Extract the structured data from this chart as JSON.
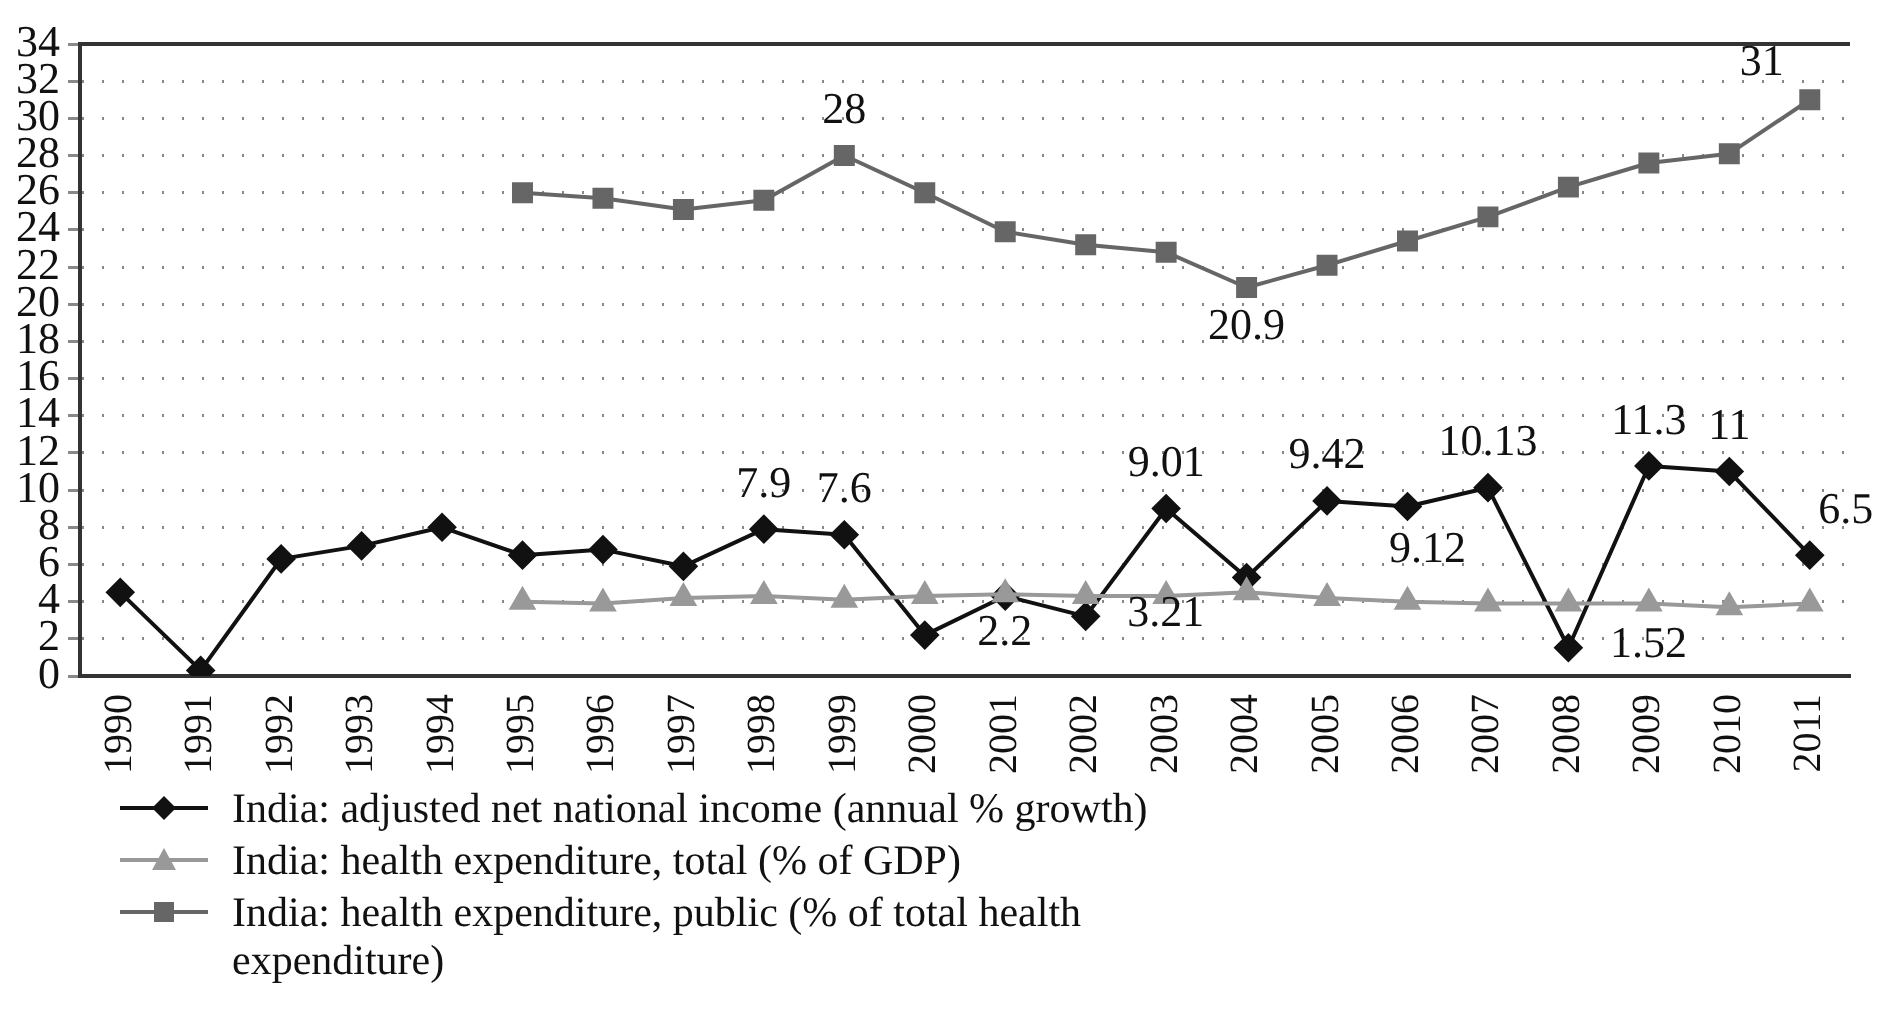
{
  "chart_data": {
    "type": "line",
    "categories": [
      "1990",
      "1991",
      "1992",
      "1993",
      "1994",
      "1995",
      "1996",
      "1997",
      "1998",
      "1999",
      "2000",
      "2001",
      "2002",
      "2003",
      "2004",
      "2005",
      "2006",
      "2007",
      "2008",
      "2009",
      "2010",
      "2011"
    ],
    "series": [
      {
        "name": "India: adjusted net national income (annual % growth)",
        "color": "#111111",
        "marker": "diamond",
        "values": [
          4.5,
          0.3,
          6.3,
          7.0,
          8.0,
          6.5,
          6.8,
          5.9,
          7.9,
          7.6,
          2.2,
          4.3,
          3.21,
          9.01,
          5.3,
          9.42,
          9.12,
          10.13,
          1.52,
          11.3,
          11,
          6.5
        ],
        "value_labels": [
          null,
          null,
          null,
          null,
          null,
          null,
          null,
          null,
          "7.9",
          "7.6",
          "2.2",
          null,
          "3.21",
          "9.01",
          null,
          "9.42",
          "9.12",
          "10.13",
          "1.52",
          "11.3",
          "11",
          "6.5"
        ]
      },
      {
        "name": "India: health expenditure, total (% of GDP)",
        "color": "#999999",
        "marker": "triangle",
        "values": [
          null,
          null,
          null,
          null,
          null,
          4.0,
          3.9,
          4.2,
          4.3,
          4.1,
          4.3,
          4.4,
          4.3,
          4.3,
          4.5,
          4.2,
          4.0,
          3.9,
          3.9,
          3.9,
          3.7,
          3.9
        ]
      },
      {
        "name": "India: health expenditure, public (% of total health expenditure)",
        "color": "#666666",
        "marker": "square",
        "values": [
          null,
          null,
          null,
          null,
          null,
          26.0,
          25.7,
          25.1,
          25.6,
          28,
          26,
          23.9,
          23.2,
          22.8,
          20.9,
          22.1,
          23.4,
          24.7,
          26.3,
          27.6,
          28.1,
          31
        ],
        "value_labels": [
          null,
          null,
          null,
          null,
          null,
          null,
          null,
          null,
          null,
          "28",
          null,
          null,
          null,
          null,
          "20.9",
          null,
          null,
          null,
          null,
          null,
          null,
          "31"
        ]
      }
    ],
    "ylim": [
      0,
      34
    ],
    "yticks": [
      0,
      2,
      4,
      6,
      8,
      10,
      12,
      14,
      16,
      18,
      20,
      22,
      24,
      26,
      28,
      30,
      32,
      34
    ],
    "grid": "y",
    "legend": "bottom",
    "line_style": "solid"
  }
}
